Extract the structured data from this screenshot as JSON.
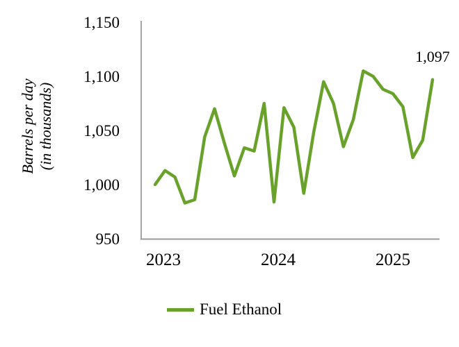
{
  "chart_data": {
    "type": "line",
    "title": "",
    "categories": [
      "Jan 2023",
      "Feb 2023",
      "Mar 2023",
      "Apr 2023",
      "May 2023",
      "Jun 2023",
      "Jul 2023",
      "Aug 2023",
      "Sep 2023",
      "Oct 2023",
      "Nov 2023",
      "Dec 2023",
      "Jan 2024",
      "Feb 2024",
      "Mar 2024",
      "Apr 2024",
      "May 2024",
      "Jun 2024",
      "Jul 2024",
      "Aug 2024",
      "Sep 2024",
      "Oct 2024",
      "Nov 2024",
      "Dec 2024",
      "Jan 2025",
      "Feb 2025",
      "Mar 2025",
      "Apr 2025",
      "May 2025"
    ],
    "series": [
      {
        "name": "Fuel Ethanol",
        "color": "#69A22B",
        "values": [
          1000,
          1013,
          1007,
          983,
          986,
          1044,
          1070,
          1038,
          1008,
          1034,
          1031,
          1075,
          984,
          1071,
          1053,
          992,
          1048,
          1095,
          1075,
          1035,
          1060,
          1105,
          1100,
          1088,
          1084,
          1072,
          1025,
          1041,
          1097
        ]
      }
    ],
    "xlabel": "",
    "ylabel": "Barrels per day (in thousands)",
    "ylabel_lines": [
      "Barrels per day",
      "(in thousands)"
    ],
    "ylim": [
      950,
      1150
    ],
    "yticks": [
      1150,
      1100,
      1050,
      1000,
      950
    ],
    "ytick_labels": [
      "1,150",
      "1,100",
      "1,050",
      "1,000",
      "950"
    ],
    "xtick_labels": [
      "2023",
      "2024",
      "2025"
    ],
    "grid": false,
    "legend_position": "bottom",
    "axis_color": "#9B9B9B",
    "background": "#FFFFFF",
    "annotation": {
      "text": "1,097",
      "point_index": 28
    }
  },
  "legend": {
    "label": "Fuel Ethanol"
  }
}
